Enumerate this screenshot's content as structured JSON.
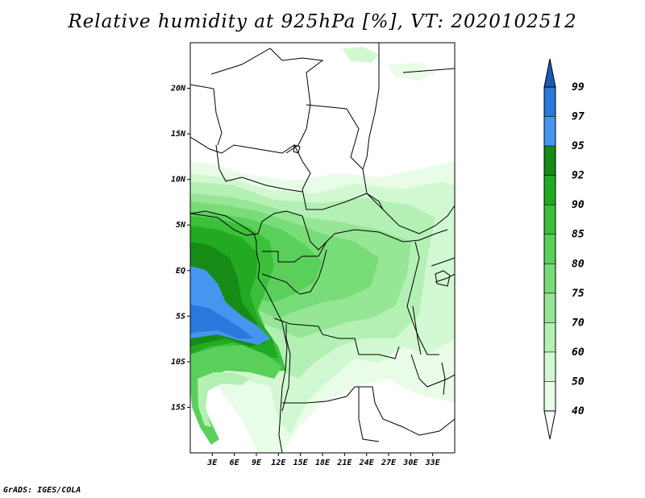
{
  "title": "Relative humidity at 925hPa [%], VT: 2020102512",
  "credit": "GrADS: IGES/COLA",
  "map": {
    "lon_range": [
      0,
      36
    ],
    "lat_range": [
      -20,
      25
    ],
    "lat_ticks": [
      {
        "value": 20,
        "label": "20N"
      },
      {
        "value": 15,
        "label": "15N"
      },
      {
        "value": 10,
        "label": "10N"
      },
      {
        "value": 5,
        "label": "5N"
      },
      {
        "value": 0,
        "label": "EQ"
      },
      {
        "value": -5,
        "label": "5S"
      },
      {
        "value": -10,
        "label": "10S"
      },
      {
        "value": -15,
        "label": "15S"
      }
    ],
    "lon_ticks": [
      {
        "value": 3,
        "label": "3E"
      },
      {
        "value": 6,
        "label": "6E"
      },
      {
        "value": 9,
        "label": "9E"
      },
      {
        "value": 12,
        "label": "12E"
      },
      {
        "value": 15,
        "label": "15E"
      },
      {
        "value": 18,
        "label": "18E"
      },
      {
        "value": 21,
        "label": "21E"
      },
      {
        "value": 24,
        "label": "24E"
      },
      {
        "value": 27,
        "label": "27E"
      },
      {
        "value": 30,
        "label": "30E"
      },
      {
        "value": 33,
        "label": "33E"
      }
    ]
  },
  "colorbar": {
    "levels": [
      "40",
      "50",
      "60",
      "70",
      "75",
      "80",
      "85",
      "90",
      "92",
      "95",
      "97",
      "99"
    ],
    "colors": [
      "#ffffff",
      "#e8fce8",
      "#d2f8d2",
      "#b4f0b4",
      "#96e696",
      "#78dc78",
      "#5ad05a",
      "#3cc03c",
      "#22aa22",
      "#168c16",
      "#4696f0",
      "#2a78dc",
      "#1e5ab4"
    ]
  }
}
